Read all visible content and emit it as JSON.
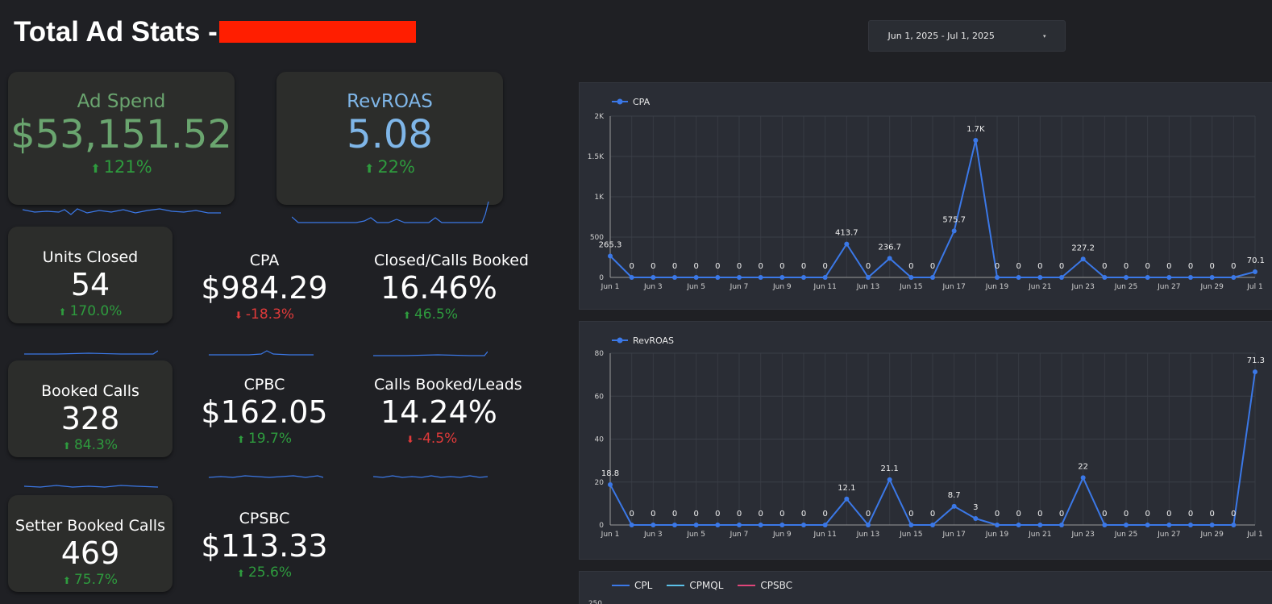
{
  "header": {
    "title": "Total Ad Stats - ",
    "date_range": "Jun 1, 2025 - Jul 1, 2025",
    "date_caret": "▾"
  },
  "kpis": {
    "ad_spend": {
      "label": "Ad Spend",
      "value": "$53,151.52",
      "arrow": "⬆",
      "delta": "121%"
    },
    "rev_roas": {
      "label": "RevROAS",
      "value": "5.08",
      "arrow": "⬆",
      "delta": "22%"
    },
    "units_closed": {
      "label": "Units Closed",
      "value": "54",
      "arrow": "⬆",
      "delta": "170.0%"
    },
    "cpa": {
      "label": "CPA",
      "value": "$984.29",
      "arrow": "⬇",
      "delta": "-18.3%"
    },
    "closed_calls_booked": {
      "label": "Closed/Calls Booked",
      "value": "16.46%",
      "arrow": "⬆",
      "delta": "46.5%"
    },
    "booked_calls": {
      "label": "Booked Calls",
      "value": "328",
      "arrow": "⬆",
      "delta": "84.3%"
    },
    "cpbc": {
      "label": "CPBC",
      "value": "$162.05",
      "arrow": "⬆",
      "delta": "19.7%"
    },
    "calls_booked_leads": {
      "label": "Calls Booked/Leads",
      "value": "14.24%",
      "arrow": "⬇",
      "delta": "-4.5%"
    },
    "setter_booked_calls": {
      "label": "Setter Booked Calls",
      "value": "469",
      "arrow": "⬆",
      "delta": "75.7%"
    },
    "cpsbc": {
      "label": "CPSBC",
      "value": "$113.33",
      "arrow": "⬆",
      "delta": "25.6%"
    }
  },
  "colors": {
    "ad_spend": "#6aa56f",
    "rev_roas": "#7fb6e8",
    "up": "#2e9b3e",
    "down": "#e03a3a",
    "line": "#3b78e7",
    "cpmql": "#5bc0e8",
    "cpsbc": "#e0457a"
  },
  "chart_data": [
    {
      "type": "line",
      "legend": [
        "CPA"
      ],
      "x": [
        "Jun 1",
        "Jun 2",
        "Jun 3",
        "Jun 4",
        "Jun 5",
        "Jun 6",
        "Jun 7",
        "Jun 8",
        "Jun 9",
        "Jun 10",
        "Jun 11",
        "Jun 12",
        "Jun 13",
        "Jun 14",
        "Jun 15",
        "Jun 16",
        "Jun 17",
        "Jun 18",
        "Jun 19",
        "Jun 20",
        "Jun 21",
        "Jun 22",
        "Jun 23",
        "Jun 24",
        "Jun 25",
        "Jun 26",
        "Jun 27",
        "Jun 28",
        "Jun 29",
        "Jun 30",
        "Jul 1"
      ],
      "x_ticks": [
        "Jun 1",
        "Jun 3",
        "Jun 5",
        "Jun 7",
        "Jun 9",
        "Jun 11",
        "Jun 13",
        "Jun 15",
        "Jun 17",
        "Jun 19",
        "Jun 21",
        "Jun 23",
        "Jun 25",
        "Jun 27",
        "Jun 29",
        "Jul 1"
      ],
      "series": [
        {
          "name": "CPA",
          "values": [
            265.3,
            0,
            0,
            0,
            0,
            0,
            0,
            0,
            0,
            0,
            0,
            413.7,
            0,
            236.7,
            0,
            0,
            575.7,
            1700,
            0,
            0,
            0,
            0,
            227.2,
            0,
            0,
            0,
            0,
            0,
            0,
            0,
            70.1
          ]
        }
      ],
      "data_labels": [
        "265.3",
        "0",
        "0",
        "0",
        "0",
        "0",
        "0",
        "0",
        "0",
        "0",
        "0",
        "413.7",
        "0",
        "236.7",
        "0",
        "0",
        "575.7",
        "1.7K",
        "0",
        "0",
        "0",
        "0",
        "227.2",
        "0",
        "0",
        "0",
        "0",
        "0",
        "0",
        "0",
        "70.1"
      ],
      "y_ticks": [
        "0",
        "500",
        "1K",
        "1.5K",
        "2K"
      ],
      "ylim": [
        0,
        2000
      ],
      "grid": true,
      "legend_position": "top-left"
    },
    {
      "type": "line",
      "legend": [
        "RevROAS"
      ],
      "x": [
        "Jun 1",
        "Jun 2",
        "Jun 3",
        "Jun 4",
        "Jun 5",
        "Jun 6",
        "Jun 7",
        "Jun 8",
        "Jun 9",
        "Jun 10",
        "Jun 11",
        "Jun 12",
        "Jun 13",
        "Jun 14",
        "Jun 15",
        "Jun 16",
        "Jun 17",
        "Jun 18",
        "Jun 19",
        "Jun 20",
        "Jun 21",
        "Jun 22",
        "Jun 23",
        "Jun 24",
        "Jun 25",
        "Jun 26",
        "Jun 27",
        "Jun 28",
        "Jun 29",
        "Jun 30",
        "Jul 1"
      ],
      "x_ticks": [
        "Jun 1",
        "Jun 3",
        "Jun 5",
        "Jun 7",
        "Jun 9",
        "Jun 11",
        "Jun 13",
        "Jun 15",
        "Jun 17",
        "Jun 19",
        "Jun 21",
        "Jun 23",
        "Jun 25",
        "Jun 27",
        "Jun 29",
        "Jul 1"
      ],
      "series": [
        {
          "name": "RevROAS",
          "values": [
            18.8,
            0,
            0,
            0,
            0,
            0,
            0,
            0,
            0,
            0,
            0,
            12.1,
            0,
            21.1,
            0,
            0,
            8.7,
            3,
            0,
            0,
            0,
            0,
            22,
            0,
            0,
            0,
            0,
            0,
            0,
            0,
            71.3
          ]
        }
      ],
      "data_labels": [
        "18.8",
        "0",
        "0",
        "0",
        "0",
        "0",
        "0",
        "0",
        "0",
        "0",
        "0",
        "12.1",
        "0",
        "21.1",
        "0",
        "0",
        "8.7",
        "3",
        "0",
        "0",
        "0",
        "0",
        "22",
        "0",
        "0",
        "0",
        "0",
        "0",
        "0",
        "0",
        "71.3"
      ],
      "y_ticks": [
        "0",
        "20",
        "40",
        "60",
        "80"
      ],
      "ylim": [
        0,
        80
      ],
      "grid": true,
      "legend_position": "top-left"
    },
    {
      "type": "line",
      "legend": [
        "CPL",
        "CPMQL",
        "CPSBC"
      ],
      "y_ticks": [
        "250"
      ],
      "legend_position": "top-left"
    }
  ]
}
